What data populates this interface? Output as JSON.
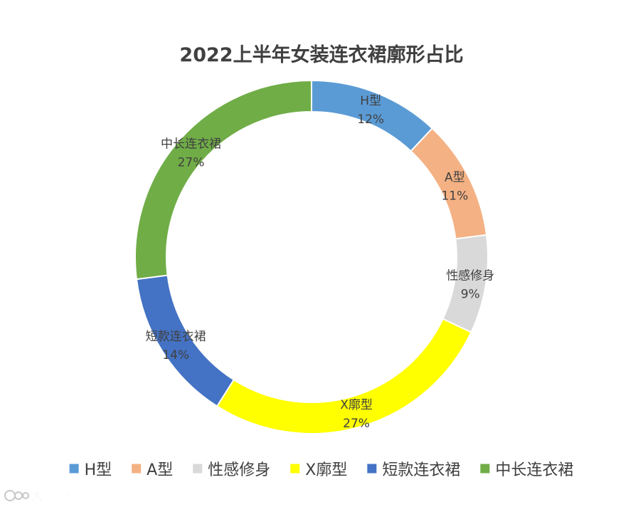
{
  "chart_data": {
    "type": "pie",
    "title": "2022上半年女装连衣裙廓形占比",
    "categories": [
      "H型",
      "A型",
      "性感修身",
      "X廓型",
      "短款连衣裙",
      "中长连衣裙"
    ],
    "values": [
      12,
      11,
      9,
      27,
      14,
      27
    ],
    "value_labels": [
      "12%",
      "11%",
      "9%",
      "27%",
      "14%",
      "27%"
    ],
    "colors": [
      "#5B9BD5",
      "#F4B183",
      "#D9D9D9",
      "#FFFF00",
      "#4472C4",
      "#70AD47"
    ],
    "donut": true,
    "legend_position": "bottom"
  },
  "watermark": "大数跨境"
}
